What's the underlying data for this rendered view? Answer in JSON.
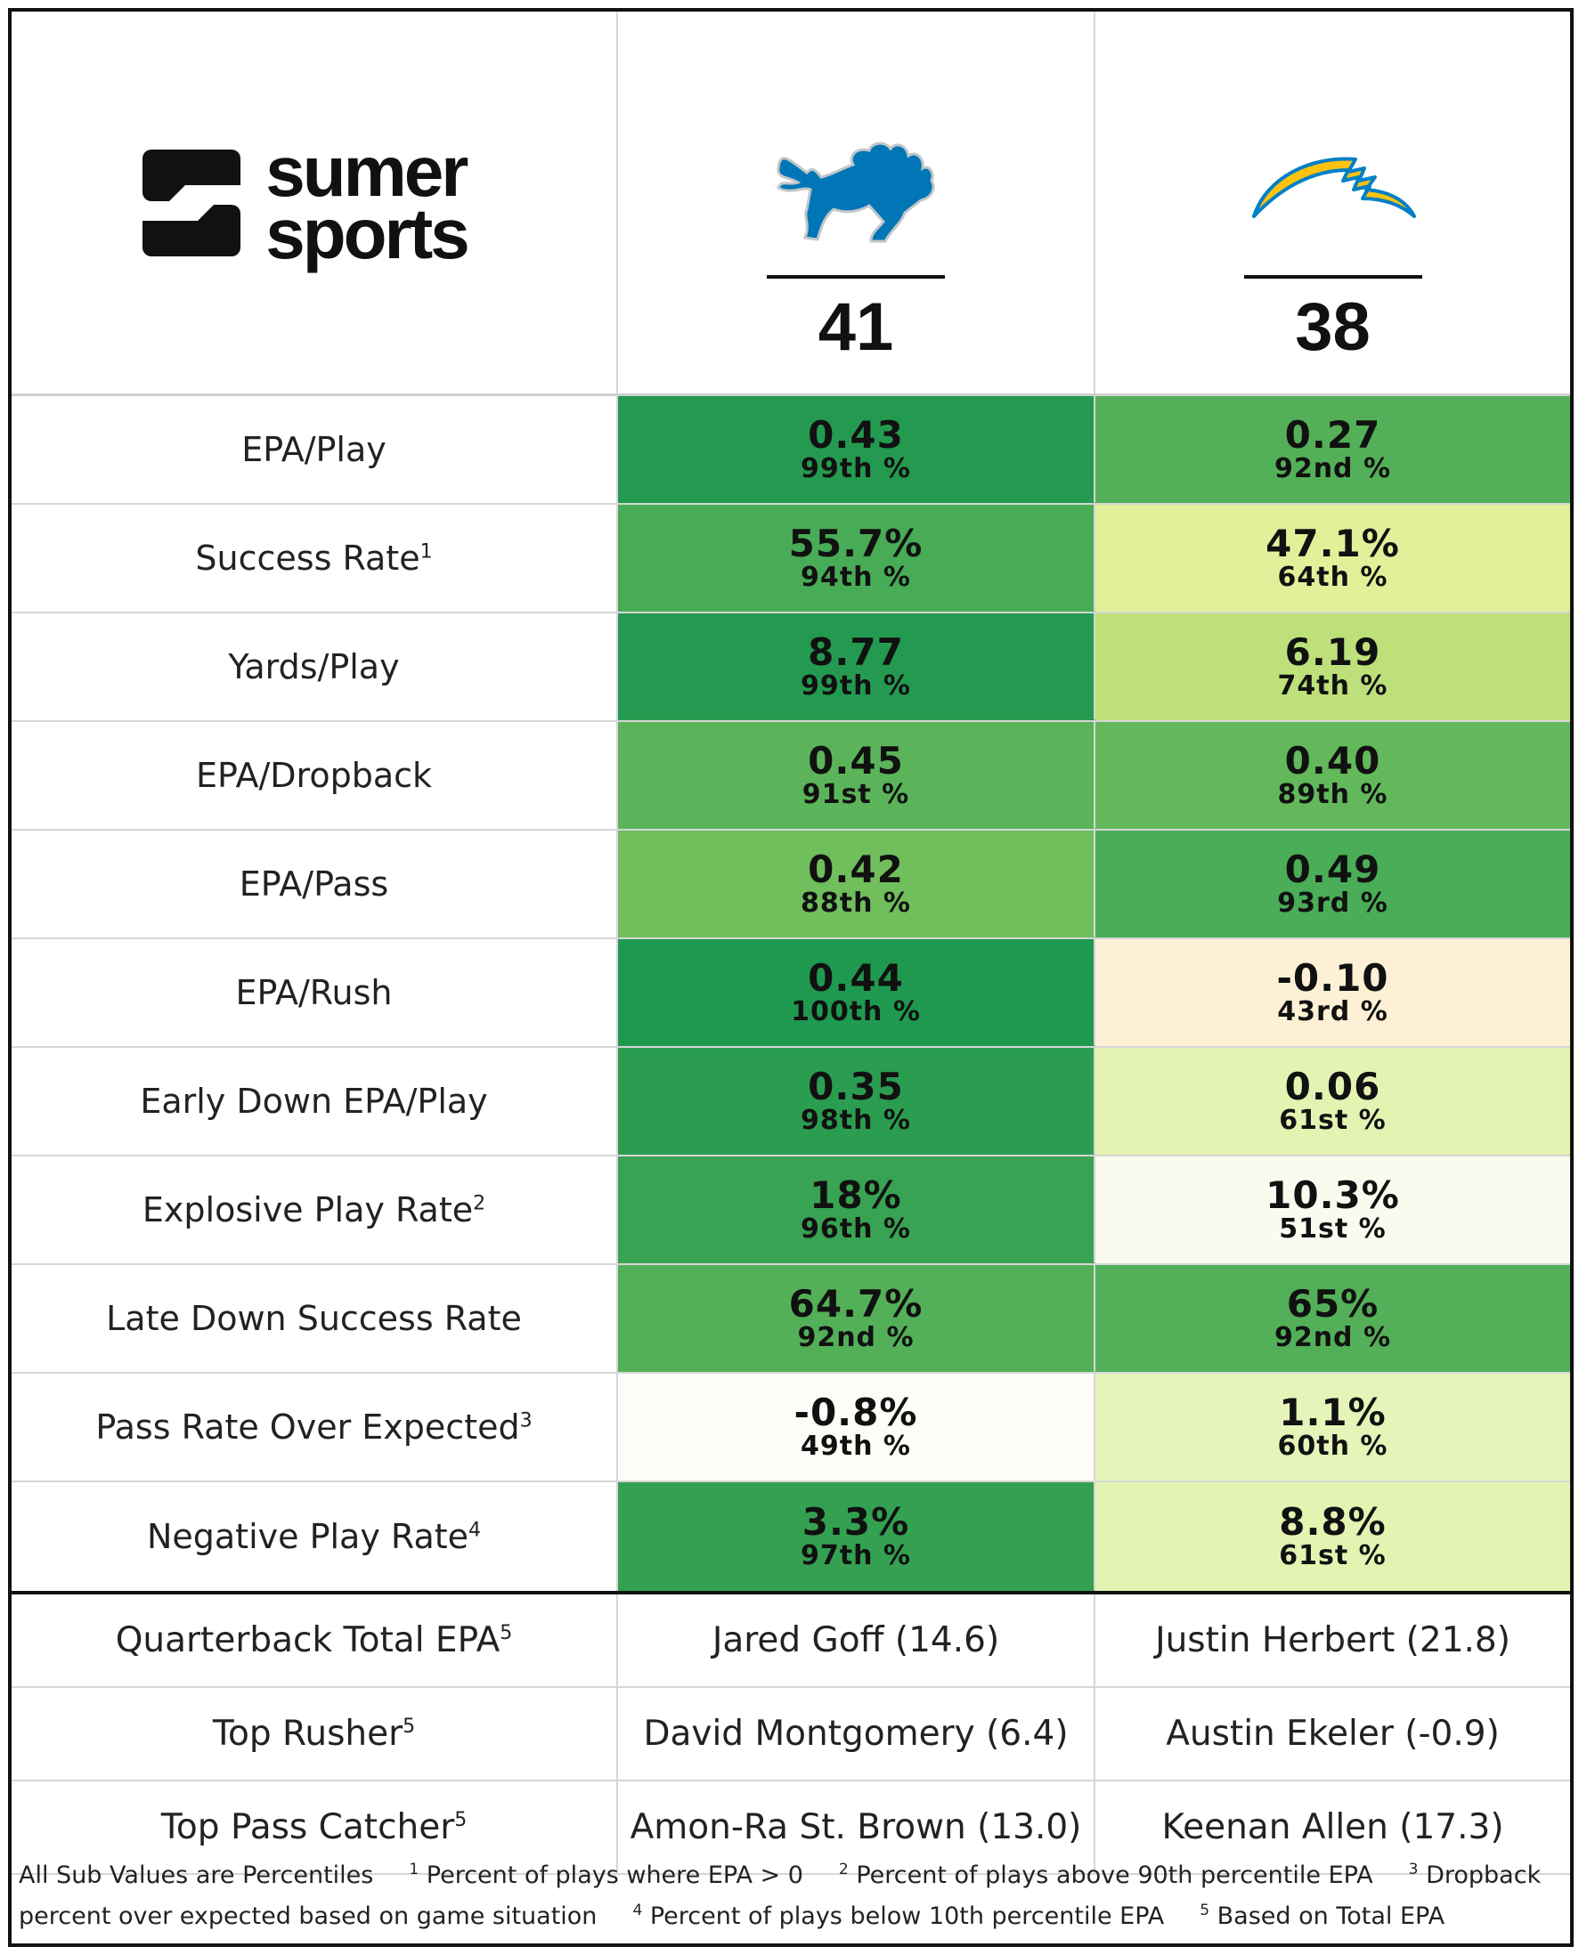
{
  "brand": {
    "line1": "sumer",
    "line2": "sports"
  },
  "teams": [
    {
      "name": "Detroit Lions",
      "icon": "lions-logo-icon",
      "score": "41",
      "color": "#0076B6"
    },
    {
      "name": "Los Angeles Chargers",
      "icon": "chargers-bolt-icon",
      "score": "38",
      "color": "#FFC20E"
    }
  ],
  "stats": [
    {
      "label": "EPA/Play",
      "sup": "",
      "home": {
        "value": "0.43",
        "pct": "99th %",
        "bg": "#249a50"
      },
      "away": {
        "value": "0.27",
        "pct": "92nd %",
        "bg": "#53b058"
      }
    },
    {
      "label": "Success Rate",
      "sup": "1",
      "home": {
        "value": "55.7%",
        "pct": "94th %",
        "bg": "#48ab56"
      },
      "away": {
        "value": "47.1%",
        "pct": "64th %",
        "bg": "#e0f19a"
      }
    },
    {
      "label": "Yards/Play",
      "sup": "",
      "home": {
        "value": "8.77",
        "pct": "99th %",
        "bg": "#249a50"
      },
      "away": {
        "value": "6.19",
        "pct": "74th %",
        "bg": "#bde07a"
      }
    },
    {
      "label": "EPA/Dropback",
      "sup": "",
      "home": {
        "value": "0.45",
        "pct": "91st %",
        "bg": "#5bb45a"
      },
      "away": {
        "value": "0.40",
        "pct": "89th %",
        "bg": "#62b85b"
      }
    },
    {
      "label": "EPA/Pass",
      "sup": "",
      "home": {
        "value": "0.42",
        "pct": "88th %",
        "bg": "#70be5c"
      },
      "away": {
        "value": "0.49",
        "pct": "93rd %",
        "bg": "#4aad57"
      }
    },
    {
      "label": "EPA/Rush",
      "sup": "",
      "home": {
        "value": "0.44",
        "pct": "100th %",
        "bg": "#1f994f"
      },
      "away": {
        "value": "-0.10",
        "pct": "43rd %",
        "bg": "#fdf0d4"
      }
    },
    {
      "label": "Early Down EPA/Play",
      "sup": "",
      "home": {
        "value": "0.35",
        "pct": "98th %",
        "bg": "#2b9d51"
      },
      "away": {
        "value": "0.06",
        "pct": "61st %",
        "bg": "#e3f3b1"
      }
    },
    {
      "label": "Explosive Play Rate",
      "sup": "2",
      "home": {
        "value": "18%",
        "pct": "96th %",
        "bg": "#38a352"
      },
      "away": {
        "value": "10.3%",
        "pct": "51st %",
        "bg": "#f8fbed"
      }
    },
    {
      "label": "Late Down Success Rate",
      "sup": "",
      "home": {
        "value": "64.7%",
        "pct": "92nd %",
        "bg": "#53b058"
      },
      "away": {
        "value": "65%",
        "pct": "92nd %",
        "bg": "#53b058"
      }
    },
    {
      "label": "Pass Rate Over Expected",
      "sup": "3",
      "home": {
        "value": "-0.8%",
        "pct": "49th %",
        "bg": "#fdfcf7"
      },
      "away": {
        "value": "1.1%",
        "pct": "60th %",
        "bg": "#e5f4b8"
      }
    },
    {
      "label": "Negative Play Rate",
      "sup": "4",
      "home": {
        "value": "3.3%",
        "pct": "97th %",
        "bg": "#33a151"
      },
      "away": {
        "value": "8.8%",
        "pct": "61st %",
        "bg": "#e3f3b1"
      }
    }
  ],
  "players": [
    {
      "label": "Quarterback Total EPA",
      "sup": "5",
      "home": "Jared Goff (14.6)",
      "away": "Justin Herbert (21.8)"
    },
    {
      "label": "Top Rusher",
      "sup": "5",
      "home": "David Montgomery (6.4)",
      "away": "Austin Ekeler (-0.9)"
    },
    {
      "label": "Top Pass Catcher",
      "sup": "5",
      "home": "Amon-Ra St. Brown (13.0)",
      "away": "Keenan Allen (17.3)"
    }
  ],
  "footnotes": {
    "intro": "All Sub Values are Percentiles",
    "notes": [
      {
        "n": "1",
        "text": "Percent of plays where EPA > 0"
      },
      {
        "n": "2",
        "text": "Percent of plays above 90th percentile EPA"
      },
      {
        "n": "3",
        "text": "Dropback percent over expected based on game situation"
      },
      {
        "n": "4",
        "text": "Percent of plays below 10th percentile EPA"
      },
      {
        "n": "5",
        "text": "Based on Total EPA"
      }
    ]
  }
}
